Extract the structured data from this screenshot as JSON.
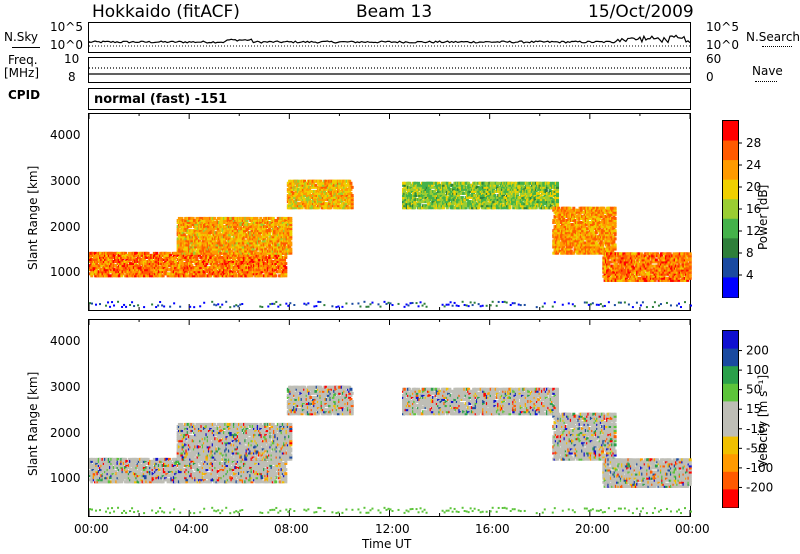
{
  "header": {
    "title": "Hokkaido (fitACF)",
    "beam": "Beam 13",
    "date": "15/Oct/2009"
  },
  "params": {
    "nsky_label": "N.Sky",
    "nsky_ticks": [
      "10^5",
      "10^0"
    ],
    "nsearch_label": "N.Search",
    "nsearch_ticks": [
      "10^5",
      "10^0"
    ],
    "freq_label": "Freq.",
    "freq_unit": "[MHz]",
    "freq_ticks": [
      "10",
      "8"
    ],
    "nave_label": "Nave",
    "nave_ticks": [
      "60",
      "0"
    ],
    "cpid_label": "CPID",
    "cpid_value": "normal (fast) -151"
  },
  "chart_data": [
    {
      "type": "heatmap",
      "title": "",
      "ylabel": "Slant Range [km]",
      "xlabel": "",
      "ylim": [
        180,
        4500
      ],
      "yticks": [
        "4000",
        "3000",
        "2000",
        "1000"
      ],
      "colorbar_label": "Power [dB]",
      "colorbar_ticks": [
        "28",
        "24",
        "20",
        "16",
        "12",
        "8",
        "4"
      ],
      "colormap": [
        "#0000ff",
        "#1a4aa0",
        "#2e7f3a",
        "#44b24a",
        "#9acd32",
        "#f0d000",
        "#ff9a00",
        "#ff5a00",
        "#ff0000"
      ],
      "features": [
        {
          "from": 0,
          "to": 7.8,
          "range": [
            900,
            1400
          ],
          "level": 30
        },
        {
          "from": 3.5,
          "to": 8.0,
          "range": [
            1400,
            2200
          ],
          "level": 27
        },
        {
          "from": 7.9,
          "to": 10.5,
          "range": [
            2400,
            3000
          ],
          "level": 26
        },
        {
          "from": 12.5,
          "to": 18.7,
          "range": [
            2400,
            2950
          ],
          "level": 20
        },
        {
          "from": 18.5,
          "to": 21.0,
          "range": [
            1400,
            2400
          ],
          "level": 28
        },
        {
          "from": 20.5,
          "to": 24.0,
          "range": [
            800,
            1400
          ],
          "level": 30
        }
      ]
    },
    {
      "type": "heatmap",
      "title": "",
      "ylabel": "Slant Range [km]",
      "xlabel": "Time UT",
      "ylim": [
        180,
        4500
      ],
      "yticks": [
        "4000",
        "3000",
        "2000",
        "1000"
      ],
      "xticks": [
        "00:00",
        "04:00",
        "08:00",
        "12:00",
        "16:00",
        "20:00",
        "00:00"
      ],
      "colorbar_label": "Velocity [m s⁻¹]",
      "colorbar_ticks": [
        "200",
        "100",
        "50",
        "15",
        "-15",
        "-50",
        "-100",
        "-200"
      ],
      "colormap": [
        "#ff0000",
        "#ff5a00",
        "#ff9a00",
        "#f0c000",
        "#bebeb6",
        "#bebeb6",
        "#5cc43a",
        "#2aa04a",
        "#1a4aa0",
        "#1010d0"
      ]
    }
  ]
}
